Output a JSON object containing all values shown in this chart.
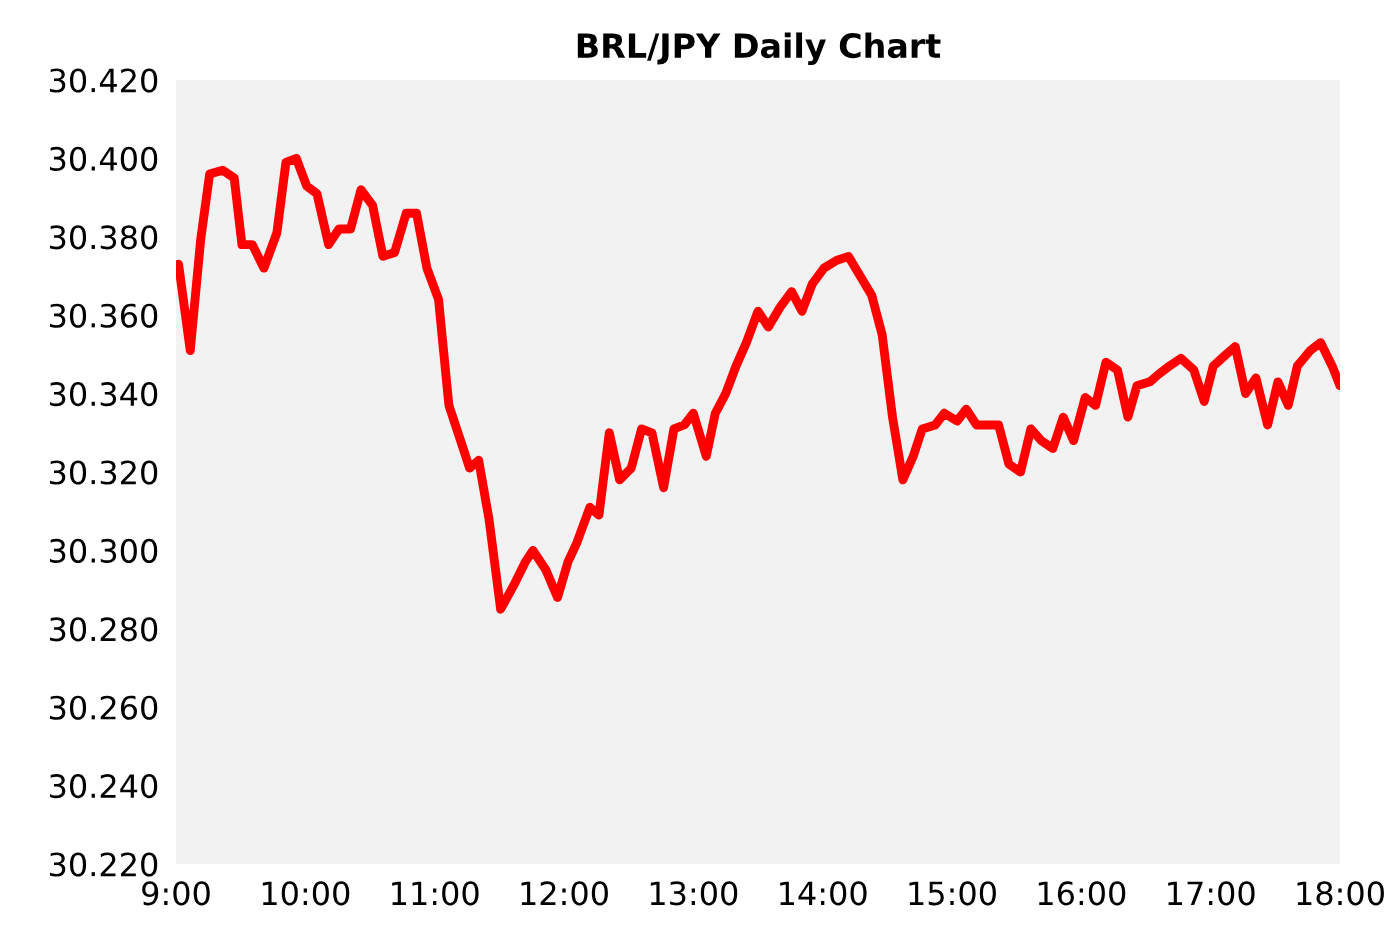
{
  "chart_data": {
    "type": "line",
    "title": "BRL/JPY Daily Chart",
    "x": [
      9.02,
      9.11,
      9.19,
      9.26,
      9.36,
      9.45,
      9.51,
      9.59,
      9.68,
      9.78,
      9.85,
      9.93,
      10.01,
      10.09,
      10.18,
      10.26,
      10.35,
      10.43,
      10.52,
      10.6,
      10.69,
      10.78,
      10.86,
      10.94,
      11.03,
      11.11,
      11.19,
      11.27,
      11.34,
      11.42,
      11.51,
      11.61,
      11.7,
      11.76,
      11.86,
      11.95,
      12.03,
      12.1,
      12.2,
      12.27,
      12.35,
      12.43,
      12.52,
      12.6,
      12.68,
      12.77,
      12.85,
      12.93,
      13.0,
      13.1,
      13.17,
      13.25,
      13.33,
      13.41,
      13.5,
      13.58,
      13.67,
      13.76,
      13.84,
      13.92,
      14.01,
      14.11,
      14.2,
      14.29,
      14.38,
      14.46,
      14.54,
      14.62,
      14.7,
      14.77,
      14.87,
      14.94,
      15.04,
      15.11,
      15.19,
      15.28,
      15.36,
      15.44,
      15.53,
      15.61,
      15.69,
      15.78,
      15.86,
      15.94,
      16.03,
      16.11,
      16.19,
      16.28,
      16.36,
      16.43,
      16.53,
      16.6,
      16.68,
      16.77,
      16.87,
      16.95,
      17.02,
      17.12,
      17.19,
      17.27,
      17.35,
      17.44,
      17.52,
      17.6,
      17.67,
      17.77,
      17.85,
      17.94,
      18.0
    ],
    "series": [
      {
        "color": "#ff0000",
        "values": [
          30.373,
          30.351,
          30.379,
          30.396,
          30.397,
          30.395,
          30.378,
          30.378,
          30.372,
          30.381,
          30.399,
          30.4,
          30.393,
          30.391,
          30.378,
          30.382,
          30.382,
          30.392,
          30.388,
          30.375,
          30.376,
          30.386,
          30.386,
          30.372,
          30.364,
          30.337,
          30.329,
          30.321,
          30.323,
          30.308,
          30.285,
          30.291,
          30.297,
          30.3,
          30.295,
          30.288,
          30.297,
          30.302,
          30.311,
          30.309,
          30.33,
          30.318,
          30.321,
          30.331,
          30.33,
          30.316,
          30.331,
          30.332,
          30.335,
          30.324,
          30.335,
          30.34,
          30.347,
          30.353,
          30.361,
          30.357,
          30.362,
          30.366,
          30.361,
          30.368,
          30.372,
          30.374,
          30.375,
          30.37,
          30.365,
          30.355,
          30.334,
          30.318,
          30.324,
          30.331,
          30.332,
          30.335,
          30.333,
          30.336,
          30.332,
          30.332,
          30.332,
          30.322,
          30.32,
          30.331,
          30.328,
          30.326,
          30.334,
          30.328,
          30.339,
          30.337,
          30.348,
          30.346,
          30.334,
          30.342,
          30.343,
          30.345,
          30.347,
          30.349,
          30.346,
          30.338,
          30.347,
          30.35,
          30.352,
          30.34,
          30.344,
          30.332,
          30.343,
          30.337,
          30.347,
          30.351,
          30.353,
          30.347,
          30.342
        ]
      }
    ],
    "xlim": [
      9,
      18
    ],
    "xticks": [
      {
        "value": 9,
        "label": "9:00"
      },
      {
        "value": 10,
        "label": "10:00"
      },
      {
        "value": 11,
        "label": "11:00"
      },
      {
        "value": 12,
        "label": "12:00"
      },
      {
        "value": 13,
        "label": "13:00"
      },
      {
        "value": 14,
        "label": "14:00"
      },
      {
        "value": 15,
        "label": "15:00"
      },
      {
        "value": 16,
        "label": "16:00"
      },
      {
        "value": 17,
        "label": "17:00"
      },
      {
        "value": 18,
        "label": "18:00"
      }
    ],
    "ylim": [
      30.22,
      30.42
    ],
    "yticks": [
      {
        "value": 30.22,
        "label": "30.220"
      },
      {
        "value": 30.24,
        "label": "30.240"
      },
      {
        "value": 30.26,
        "label": "30.260"
      },
      {
        "value": 30.28,
        "label": "30.280"
      },
      {
        "value": 30.3,
        "label": "30.300"
      },
      {
        "value": 30.32,
        "label": "30.320"
      },
      {
        "value": 30.34,
        "label": "30.340"
      },
      {
        "value": 30.36,
        "label": "30.360"
      },
      {
        "value": 30.38,
        "label": "30.380"
      },
      {
        "value": 30.4,
        "label": "30.400"
      },
      {
        "value": 30.42,
        "label": "30.420"
      }
    ],
    "grid": false,
    "legend": false,
    "marker": "none",
    "line_style": "solid"
  }
}
